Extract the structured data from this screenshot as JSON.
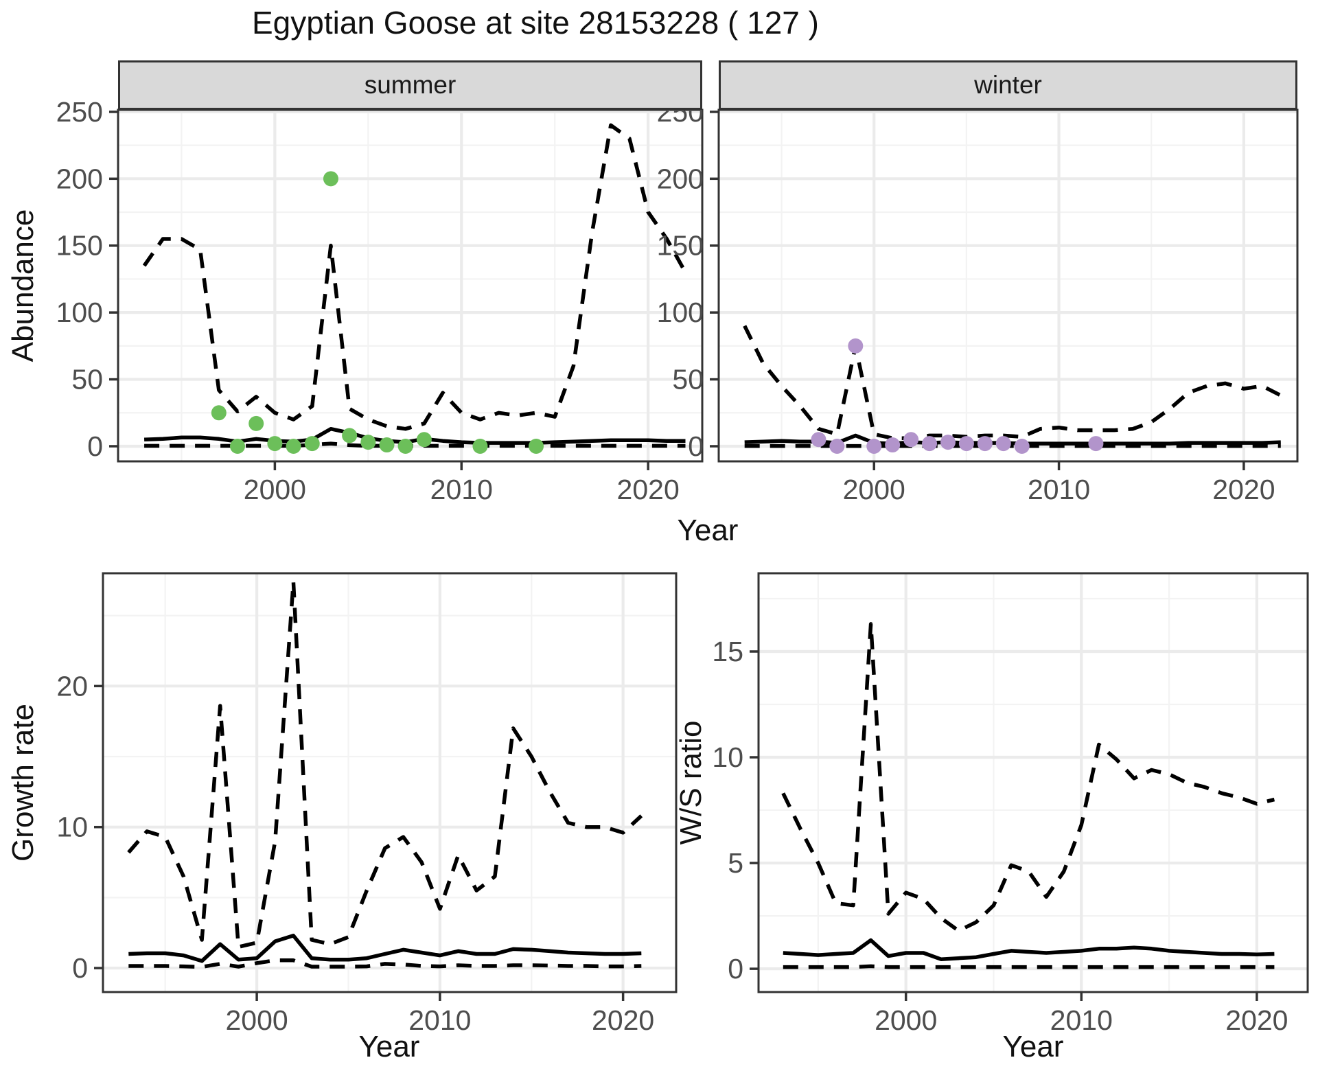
{
  "title": "Egyptian Goose at site 28153228 ( 127 )",
  "colors": {
    "summer_point": "#6CBF5A",
    "winter_point": "#B294CB",
    "line": "#000000",
    "grid_major": "#EBEBEB",
    "grid_minor": "#F3F3F3",
    "strip_bg": "#D9D9D9",
    "panel_border": "#333333",
    "tick_label": "#4D4D4D"
  },
  "chart_data": [
    {
      "type": "line",
      "facet": "summer",
      "xlabel": "Year",
      "ylabel": "Abundance",
      "xticks": [
        2000,
        2010,
        2020
      ],
      "yticks": [
        0,
        50,
        100,
        150,
        200,
        250
      ],
      "xlim": [
        1991.6,
        2022.9
      ],
      "ylim": [
        -11.3,
        251.5
      ],
      "grid": true,
      "legend": "none",
      "point_color": "#6CBF5A",
      "series": [
        {
          "name": "upper_ci",
          "style": "dashed",
          "years": [
            1993,
            1994,
            1995,
            1996,
            1997,
            1998,
            1999,
            2000,
            2001,
            2002,
            2003,
            2004,
            2005,
            2006,
            2007,
            2008,
            2009,
            2010,
            2011,
            2012,
            2013,
            2014,
            2015,
            2016,
            2017,
            2018,
            2019,
            2020,
            2021,
            2022
          ],
          "values": [
            135,
            155,
            155,
            147,
            42,
            26,
            37,
            25,
            20,
            30,
            150,
            28,
            20,
            15,
            13,
            17,
            40,
            25,
            20,
            25,
            23,
            25,
            22,
            60,
            160,
            240,
            230,
            175,
            155,
            130
          ]
        },
        {
          "name": "fit",
          "style": "solid",
          "years": [
            1993,
            1994,
            1995,
            1996,
            1997,
            1998,
            1999,
            2000,
            2001,
            2002,
            2003,
            2004,
            2005,
            2006,
            2007,
            2008,
            2009,
            2010,
            2011,
            2012,
            2013,
            2014,
            2015,
            2016,
            2017,
            2018,
            2019,
            2020,
            2021,
            2022
          ],
          "values": [
            5,
            5.5,
            6.5,
            6.5,
            5.5,
            3.5,
            5.5,
            4,
            3.5,
            5,
            13,
            10,
            6,
            4,
            3,
            5.5,
            4,
            3,
            2.5,
            2.5,
            2.5,
            2.5,
            3,
            3.5,
            4,
            4.5,
            4.5,
            4.5,
            4,
            4
          ]
        },
        {
          "name": "lower_ci",
          "style": "dashed",
          "years": [
            1993,
            1994,
            1995,
            1996,
            1997,
            1998,
            1999,
            2000,
            2001,
            2002,
            2003,
            2004,
            2005,
            2006,
            2007,
            2008,
            2009,
            2010,
            2011,
            2012,
            2013,
            2014,
            2015,
            2016,
            2017,
            2018,
            2019,
            2020,
            2021,
            2022
          ],
          "values": [
            0.3,
            0.3,
            0.3,
            0.3,
            0.3,
            0.3,
            0.3,
            0.3,
            0.3,
            1,
            2,
            0.8,
            0.3,
            0.3,
            0.3,
            0.3,
            0.3,
            0.3,
            0.3,
            0.3,
            0.3,
            0.3,
            0.3,
            0.3,
            0.3,
            0.3,
            0.3,
            0.3,
            0.3,
            0.3
          ]
        },
        {
          "name": "observed_counts",
          "style": "points",
          "years": [
            1997,
            1998,
            1999,
            2000,
            2001,
            2002,
            2003,
            2004,
            2005,
            2006,
            2007,
            2008,
            2011,
            2014
          ],
          "values": [
            25,
            0,
            17,
            2,
            0,
            2,
            200,
            8,
            3,
            1,
            0,
            5,
            0,
            0
          ]
        }
      ]
    },
    {
      "type": "line",
      "facet": "winter",
      "xlabel": "Year",
      "ylabel": "Abundance",
      "xticks": [
        2000,
        2010,
        2020
      ],
      "yticks": [
        0,
        50,
        100,
        150,
        200,
        250
      ],
      "xlim": [
        1991.6,
        2022.9
      ],
      "ylim": [
        -11.3,
        251.5
      ],
      "grid": true,
      "legend": "none",
      "point_color": "#B294CB",
      "series": [
        {
          "name": "upper_ci",
          "style": "dashed",
          "years": [
            1993,
            1994,
            1995,
            1996,
            1997,
            1998,
            1999,
            2000,
            2001,
            2002,
            2003,
            2004,
            2005,
            2006,
            2007,
            2008,
            2009,
            2010,
            2011,
            2012,
            2013,
            2014,
            2015,
            2016,
            2017,
            2018,
            2019,
            2020,
            2021,
            2022
          ],
          "values": [
            90,
            62,
            45,
            30,
            13,
            9,
            75,
            9,
            6,
            6,
            8,
            8,
            7,
            8,
            8,
            7,
            13,
            14,
            12,
            12,
            12,
            13,
            18,
            28,
            40,
            45,
            47,
            43,
            45,
            38
          ]
        },
        {
          "name": "fit",
          "style": "solid",
          "years": [
            1993,
            1994,
            1995,
            1996,
            1997,
            1998,
            1999,
            2000,
            2001,
            2002,
            2003,
            2004,
            2005,
            2006,
            2007,
            2008,
            2009,
            2010,
            2011,
            2012,
            2013,
            2014,
            2015,
            2016,
            2017,
            2018,
            2019,
            2020,
            2021,
            2022
          ],
          "values": [
            3,
            3.5,
            4,
            3.5,
            3.5,
            2.5,
            8,
            2.5,
            2,
            3,
            2.5,
            3,
            2.5,
            2.5,
            2.5,
            2,
            2,
            2,
            2,
            2,
            2,
            2,
            2,
            2,
            2.5,
            2.5,
            2.5,
            2.5,
            2.5,
            3
          ]
        },
        {
          "name": "lower_ci",
          "style": "dashed",
          "years": [
            1993,
            1994,
            1995,
            1996,
            1997,
            1998,
            1999,
            2000,
            2001,
            2002,
            2003,
            2004,
            2005,
            2006,
            2007,
            2008,
            2009,
            2010,
            2011,
            2012,
            2013,
            2014,
            2015,
            2016,
            2017,
            2018,
            2019,
            2020,
            2021,
            2022
          ],
          "values": [
            0.2,
            0.2,
            0.2,
            0.2,
            0.2,
            0.2,
            0.2,
            0.2,
            0.2,
            0.2,
            0.2,
            0.2,
            0.2,
            0.2,
            0.2,
            0.2,
            0.2,
            0.2,
            0.2,
            0.2,
            0.2,
            0.2,
            0.2,
            0.2,
            0.2,
            0.2,
            0.2,
            0.2,
            0.2,
            0.2
          ]
        },
        {
          "name": "observed_counts",
          "style": "points",
          "years": [
            1997,
            1998,
            1999,
            2000,
            2001,
            2002,
            2003,
            2004,
            2005,
            2006,
            2007,
            2008,
            2012
          ],
          "values": [
            5,
            0,
            75,
            0,
            1,
            5,
            2,
            3,
            2,
            2,
            2,
            0,
            2
          ]
        }
      ]
    },
    {
      "type": "line",
      "facet": "",
      "xlabel": "Year",
      "ylabel": "Growth rate",
      "xticks": [
        2000,
        2010,
        2020
      ],
      "yticks": [
        0,
        10,
        20
      ],
      "xlim": [
        1991.6,
        2022.9
      ],
      "ylim": [
        -1.7,
        28.0
      ],
      "grid": true,
      "legend": "none",
      "point_color": "",
      "series": [
        {
          "name": "upper_ci",
          "style": "dashed",
          "years": [
            1993,
            1994,
            1995,
            1996,
            1997,
            1998,
            1999,
            2000,
            2001,
            2002,
            2003,
            2004,
            2005,
            2006,
            2007,
            2008,
            2009,
            2010,
            2011,
            2012,
            2013,
            2014,
            2015,
            2016,
            2017,
            2018,
            2019,
            2020,
            2021
          ],
          "values": [
            8.2,
            9.7,
            9.3,
            6.5,
            2.0,
            18.6,
            1.5,
            1.8,
            9.0,
            27.4,
            2.0,
            1.7,
            2.2,
            5.5,
            8.5,
            9.3,
            7.5,
            4.2,
            8.0,
            5.5,
            6.5,
            17.0,
            15.0,
            12.5,
            10.3,
            10.0,
            10.0,
            9.6,
            10.8
          ]
        },
        {
          "name": "fit",
          "style": "solid",
          "years": [
            1993,
            1994,
            1995,
            1996,
            1997,
            1998,
            1999,
            2000,
            2001,
            2002,
            2003,
            2004,
            2005,
            2006,
            2007,
            2008,
            2009,
            2010,
            2011,
            2012,
            2013,
            2014,
            2015,
            2016,
            2017,
            2018,
            2019,
            2020,
            2021
          ],
          "values": [
            1.0,
            1.05,
            1.05,
            0.9,
            0.5,
            1.7,
            0.6,
            0.7,
            1.9,
            2.3,
            0.7,
            0.6,
            0.6,
            0.7,
            1.0,
            1.3,
            1.1,
            0.9,
            1.2,
            1.0,
            1.0,
            1.35,
            1.3,
            1.2,
            1.1,
            1.05,
            1.0,
            1.0,
            1.05
          ]
        },
        {
          "name": "lower_ci",
          "style": "dashed",
          "years": [
            1993,
            1994,
            1995,
            1996,
            1997,
            1998,
            1999,
            2000,
            2001,
            2002,
            2003,
            2004,
            2005,
            2006,
            2007,
            2008,
            2009,
            2010,
            2011,
            2012,
            2013,
            2014,
            2015,
            2016,
            2017,
            2018,
            2019,
            2020,
            2021
          ],
          "values": [
            0.15,
            0.15,
            0.15,
            0.12,
            0.08,
            0.3,
            0.1,
            0.35,
            0.55,
            0.55,
            0.1,
            0.1,
            0.1,
            0.12,
            0.3,
            0.25,
            0.15,
            0.12,
            0.2,
            0.15,
            0.15,
            0.2,
            0.2,
            0.18,
            0.15,
            0.15,
            0.12,
            0.12,
            0.15
          ]
        }
      ]
    },
    {
      "type": "line",
      "facet": "",
      "xlabel": "Year",
      "ylabel": "W/S ratio",
      "xticks": [
        2000,
        2010,
        2020
      ],
      "yticks": [
        0,
        5,
        10,
        15
      ],
      "xlim": [
        1991.6,
        2022.9
      ],
      "ylim": [
        -1.1,
        18.7
      ],
      "grid": true,
      "legend": "none",
      "point_color": "",
      "series": [
        {
          "name": "upper_ci",
          "style": "dashed",
          "years": [
            1993,
            1994,
            1995,
            1996,
            1997,
            1998,
            1999,
            2000,
            2001,
            2002,
            2003,
            2004,
            2005,
            2006,
            2007,
            2008,
            2009,
            2010,
            2011,
            2012,
            2013,
            2014,
            2015,
            2016,
            2017,
            2018,
            2019,
            2020,
            2021
          ],
          "values": [
            8.3,
            6.6,
            5.0,
            3.1,
            3.0,
            16.3,
            2.6,
            3.6,
            3.3,
            2.4,
            1.8,
            2.2,
            3.0,
            4.9,
            4.6,
            3.4,
            4.6,
            6.8,
            10.6,
            9.9,
            9.0,
            9.4,
            9.2,
            8.8,
            8.6,
            8.3,
            8.1,
            7.8,
            8.0
          ]
        },
        {
          "name": "fit",
          "style": "solid",
          "years": [
            1993,
            1994,
            1995,
            1996,
            1997,
            1998,
            1999,
            2000,
            2001,
            2002,
            2003,
            2004,
            2005,
            2006,
            2007,
            2008,
            2009,
            2010,
            2011,
            2012,
            2013,
            2014,
            2015,
            2016,
            2017,
            2018,
            2019,
            2020,
            2021
          ],
          "values": [
            0.75,
            0.7,
            0.65,
            0.7,
            0.75,
            1.35,
            0.6,
            0.75,
            0.75,
            0.45,
            0.5,
            0.55,
            0.7,
            0.85,
            0.8,
            0.75,
            0.8,
            0.85,
            0.95,
            0.95,
            1.0,
            0.95,
            0.85,
            0.8,
            0.75,
            0.7,
            0.7,
            0.68,
            0.7
          ]
        },
        {
          "name": "lower_ci",
          "style": "dashed",
          "years": [
            1993,
            1994,
            1995,
            1996,
            1997,
            1998,
            1999,
            2000,
            2001,
            2002,
            2003,
            2004,
            2005,
            2006,
            2007,
            2008,
            2009,
            2010,
            2011,
            2012,
            2013,
            2014,
            2015,
            2016,
            2017,
            2018,
            2019,
            2020,
            2021
          ],
          "values": [
            0.08,
            0.08,
            0.08,
            0.08,
            0.08,
            0.12,
            0.08,
            0.08,
            0.08,
            0.08,
            0.08,
            0.08,
            0.08,
            0.08,
            0.08,
            0.08,
            0.08,
            0.08,
            0.08,
            0.08,
            0.08,
            0.08,
            0.08,
            0.08,
            0.08,
            0.08,
            0.08,
            0.08,
            0.08
          ]
        }
      ]
    }
  ]
}
